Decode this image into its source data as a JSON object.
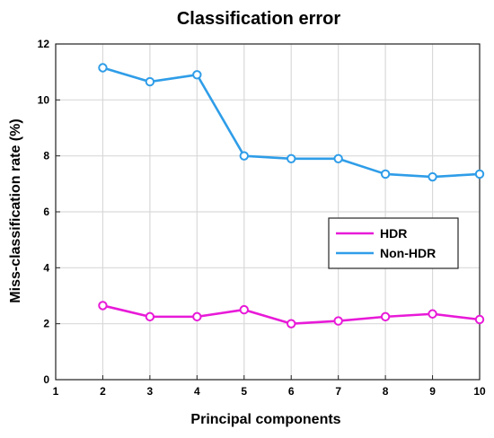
{
  "chart_data": {
    "type": "line",
    "title": "Classification error",
    "xlabel": "Principal components",
    "ylabel": "Miss-classification rate (%)",
    "xlim": [
      1,
      10
    ],
    "ylim": [
      0,
      12
    ],
    "xticks": [
      "1",
      "2",
      "3",
      "4",
      "5",
      "6",
      "7",
      "8",
      "9",
      "10"
    ],
    "yticks": [
      "0",
      "2",
      "4",
      "6",
      "8",
      "10",
      "12"
    ],
    "grid": true,
    "legend_position": "center-right",
    "x": [
      2,
      3,
      4,
      5,
      6,
      7,
      8,
      9,
      10
    ],
    "series": [
      {
        "name": "HDR",
        "color": "#e81ad8",
        "marker": "circle",
        "values": [
          2.65,
          2.25,
          2.25,
          2.5,
          2.0,
          2.1,
          2.25,
          2.35,
          2.15
        ]
      },
      {
        "name": "Non-HDR",
        "color": "#2f9de8",
        "marker": "circle",
        "values": [
          11.15,
          10.65,
          10.9,
          8.0,
          7.9,
          7.9,
          7.35,
          7.25,
          7.35
        ]
      }
    ]
  }
}
